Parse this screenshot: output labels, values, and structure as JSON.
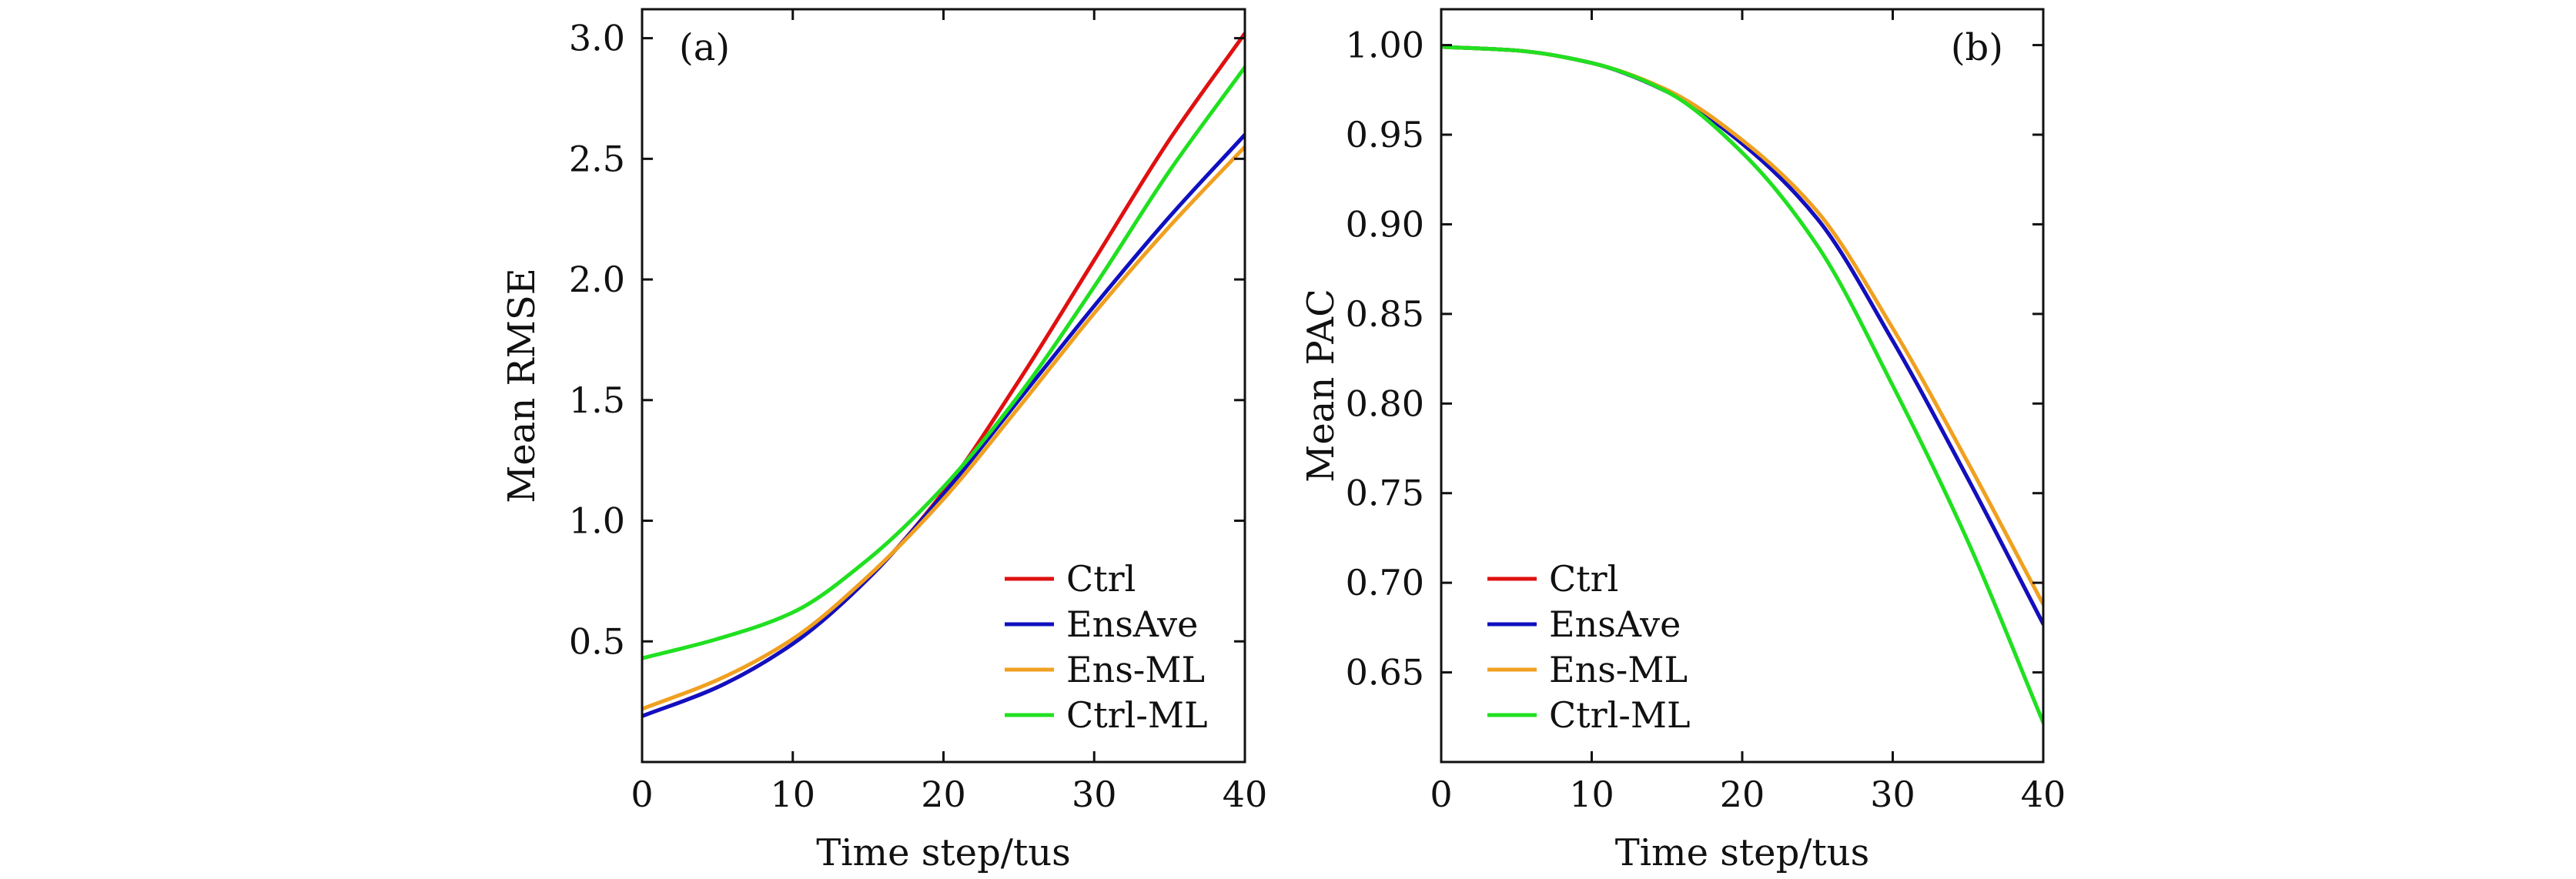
{
  "chart_data": [
    {
      "type": "line",
      "panel_label": "(a)",
      "xlabel": "Time step/tus",
      "ylabel": "Mean RMSE",
      "xlim": [
        0,
        40
      ],
      "ylim": [
        0,
        3.12
      ],
      "xticks": [
        0,
        10,
        20,
        30,
        40
      ],
      "yticks": [
        0.5,
        1.0,
        1.5,
        2.0,
        2.5,
        3.0
      ],
      "xtick_labels": [
        "0",
        "10",
        "20",
        "30",
        "40"
      ],
      "ytick_labels": [
        "0.5",
        "1.0",
        "1.5",
        "2.0",
        "2.5",
        "3.0"
      ],
      "grid": false,
      "legend_position": "bottom-right",
      "x": [
        0,
        5,
        10,
        15,
        20,
        25,
        30,
        35,
        40
      ],
      "series": [
        {
          "name": "Ctrl",
          "color": "#e01010",
          "values": [
            0.19,
            0.31,
            0.49,
            0.76,
            1.12,
            1.58,
            2.08,
            2.58,
            3.02
          ]
        },
        {
          "name": "EnsAve",
          "color": "#1010c0",
          "values": [
            0.19,
            0.31,
            0.49,
            0.76,
            1.11,
            1.5,
            1.89,
            2.26,
            2.6
          ]
        },
        {
          "name": "Ens-ML",
          "color": "#f0a020",
          "values": [
            0.22,
            0.34,
            0.51,
            0.77,
            1.09,
            1.47,
            1.86,
            2.22,
            2.55
          ]
        },
        {
          "name": "Ctrl-ML",
          "color": "#20e020",
          "values": [
            0.43,
            0.51,
            0.62,
            0.84,
            1.14,
            1.52,
            1.97,
            2.45,
            2.88
          ]
        }
      ]
    },
    {
      "type": "line",
      "panel_label": "(b)",
      "xlabel": "Time step/tus",
      "ylabel": "Mean PAC",
      "xlim": [
        0,
        40
      ],
      "ylim": [
        0.6,
        1.02
      ],
      "xticks": [
        0,
        10,
        20,
        30,
        40
      ],
      "yticks": [
        0.65,
        0.7,
        0.75,
        0.8,
        0.85,
        0.9,
        0.95,
        1.0
      ],
      "xtick_labels": [
        "0",
        "10",
        "20",
        "30",
        "40"
      ],
      "ytick_labels": [
        "0.65",
        "0.70",
        "0.75",
        "0.80",
        "0.85",
        "0.90",
        "0.95",
        "1.00"
      ],
      "grid": false,
      "legend_position": "bottom-left",
      "x": [
        0,
        5,
        10,
        15,
        20,
        25,
        30,
        35,
        40
      ],
      "series": [
        {
          "name": "Ctrl",
          "color": "#e01010",
          "values": [
            0.999,
            0.997,
            0.99,
            0.974,
            0.945,
            0.903,
            0.835,
            0.758,
            0.677
          ]
        },
        {
          "name": "EnsAve",
          "color": "#1010c0",
          "values": [
            0.999,
            0.997,
            0.99,
            0.974,
            0.945,
            0.903,
            0.835,
            0.758,
            0.677
          ]
        },
        {
          "name": "Ens-ML",
          "color": "#f0a020",
          "values": [
            0.999,
            0.997,
            0.99,
            0.975,
            0.947,
            0.907,
            0.842,
            0.767,
            0.688
          ]
        },
        {
          "name": "Ctrl-ML",
          "color": "#20e020",
          "values": [
            0.999,
            0.997,
            0.99,
            0.974,
            0.94,
            0.888,
            0.81,
            0.723,
            0.622
          ]
        }
      ]
    }
  ]
}
